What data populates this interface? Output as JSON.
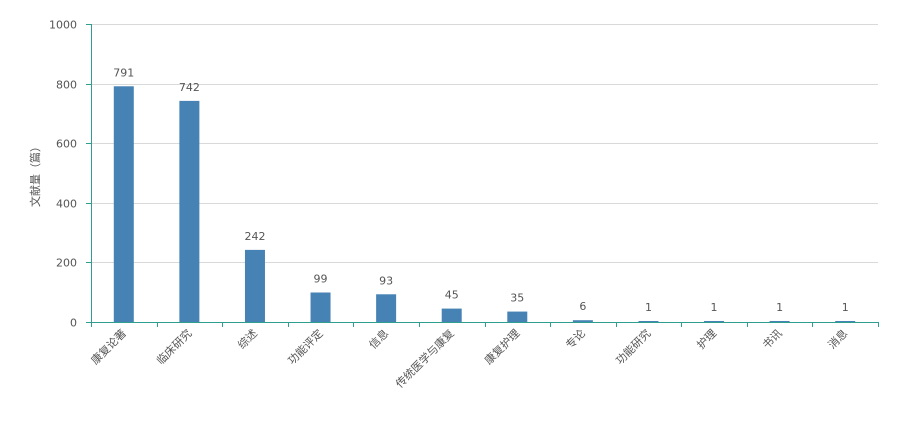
{
  "chart_data": {
    "type": "bar",
    "title": "",
    "xlabel": "",
    "ylabel": "文献量（篇）",
    "ylim": [
      0,
      1000
    ],
    "yticks": [
      0,
      200,
      400,
      600,
      800,
      1000
    ],
    "grid": true,
    "categories": [
      "康复论著",
      "临床研究",
      "综述",
      "功能评定",
      "信息",
      "传统医学与康复",
      "康复护理",
      "专论",
      "功能研究",
      "护理",
      "书讯",
      "消息"
    ],
    "values": [
      791,
      742,
      242,
      99,
      93,
      45,
      35,
      6,
      1,
      1,
      1,
      1
    ],
    "bar_color": "#4682b4",
    "axis_color": "#2f9e8f",
    "grid_color": "#d9d9d9"
  }
}
